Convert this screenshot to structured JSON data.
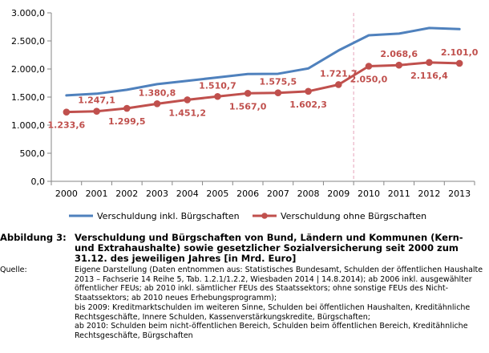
{
  "chart_data": {
    "type": "line",
    "categories": [
      "2000",
      "2001",
      "2002",
      "2003",
      "2004",
      "2005",
      "2006",
      "2007",
      "2008",
      "2009",
      "2010",
      "2011",
      "2012",
      "2013"
    ],
    "y_ticks": [
      "0,0",
      "500,0",
      "1.000,0",
      "1.500,0",
      "2.000,0",
      "2.500,0",
      "3.000,0"
    ],
    "ylim": [
      0,
      3000
    ],
    "grid": false,
    "marker_line_after": "2009",
    "legend_position": "bottom",
    "series": [
      {
        "name": "Verschuldung inkl. Bürgschaften",
        "color": "#4f81bd",
        "marker": "none",
        "values": [
          1530,
          1560,
          1630,
          1730,
          1790,
          1850,
          1910,
          1915,
          2010,
          2330,
          2600,
          2630,
          2730,
          2710
        ]
      },
      {
        "name": "Verschuldung ohne Bürgschaften",
        "color": "#c0504d",
        "marker": "circle",
        "values": [
          1233.6,
          1247.1,
          1299.5,
          1380.8,
          1451.2,
          1510.7,
          1567.0,
          1575.5,
          1602.3,
          1721.7,
          2050.0,
          2068.6,
          2116.4,
          2101.0
        ],
        "labels": [
          "1.233,6",
          "1.247,1",
          "1.299,5",
          "1.380,8",
          "1.451,2",
          "1.510,7",
          "1.567,0",
          "1.575,5",
          "1.602,3",
          "1.721,7",
          "2.050,0",
          "2.068,6",
          "2.116,4",
          "2.101,0"
        ],
        "label_placement": [
          "below",
          "above",
          "below",
          "above",
          "below",
          "above",
          "below",
          "above",
          "below",
          "above",
          "below",
          "above",
          "below",
          "above"
        ]
      }
    ]
  },
  "caption": {
    "label": "Abbildung 3:",
    "title": "Verschuldung und Bürgschaften von Bund, Ländern und Kommunen (Kern- und Extrahaushalte) sowie gesetzlicher Sozialversicherung seit 2000 zum 31.12. des jeweiligen Jahres [in Mrd. Euro]",
    "source_label": "Quelle:",
    "source_lines": [
      "Eigene Darstellung (Daten entnommen aus: Statistisches Bundesamt, Schulden der öffentlichen Haushalte",
      "2013 – Fachserie 14 Reihe 5, Tab. 1.2.1/1.2.2, Wiesbaden 2014 | 14.8.2014); ab 2006 inkl. ausgewählter",
      "öffentlicher FEUs; ab 2010 inkl. sämtlicher FEUs des Staatssektors; ohne sonstige FEUs des Nicht-",
      "Staatssektors; ab 2010 neues Erhebungsprogramm);",
      "bis 2009: Kreditmarktschulden im weiteren Sinne, Schulden bei öffentlichen Haushalten, Kreditähnliche",
      "Rechtsgeschäfte, Innere Schulden, Kassenverstärkungskredite, Bürgschaften;",
      "ab 2010: Schulden beim nicht-öffentlichen Bereich, Schulden beim öffentlichen Bereich, Kreditähnliche",
      "Rechtsgeschäfte, Bürgschaften"
    ]
  }
}
